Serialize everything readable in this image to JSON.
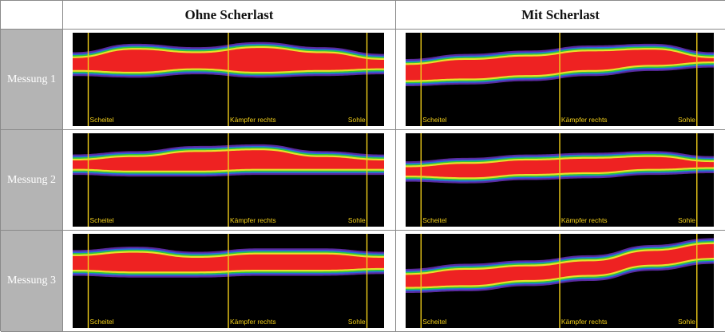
{
  "columns": [
    "Ohne Scherlast",
    "Mit Scherlast"
  ],
  "rows": [
    "Messung 1",
    "Messung 2",
    "Messung 3"
  ],
  "markers": [
    "Scheitel",
    "Kämpfer rechts",
    "Sohle"
  ],
  "colors": {
    "band_outer": "#5a2aa0",
    "band_blue": "#2a6ae0",
    "band_green": "#2cc93a",
    "band_yellow": "#e8e02a",
    "band_core": "#ee2222",
    "marker_line": "#f2cf1a",
    "background": "#000000",
    "row_label_bg": "#b4b4b4"
  }
}
